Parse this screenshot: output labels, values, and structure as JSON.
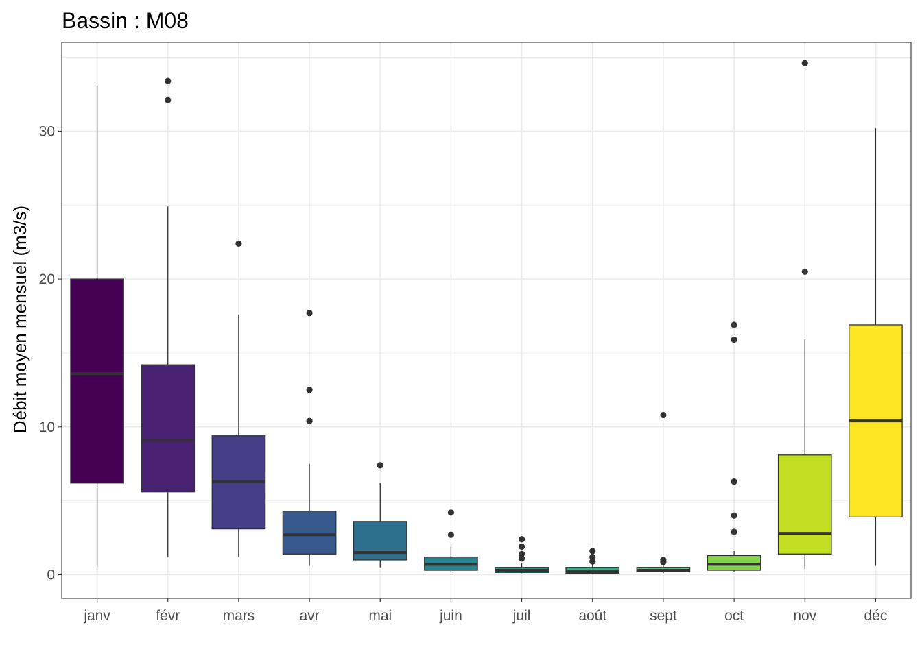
{
  "chart_data": {
    "type": "boxplot",
    "title": "Bassin : M08",
    "xlabel": "",
    "ylabel": "Débit moyen mensuel (m3/s)",
    "ylim": [
      -1.6,
      36.0
    ],
    "yticks": [
      0,
      10,
      20,
      30
    ],
    "ytick_labels": [
      "0",
      "10",
      "20",
      "30"
    ],
    "grid": true,
    "legend": "none",
    "categories": [
      "janv",
      "févr",
      "mars",
      "avr",
      "mai",
      "juin",
      "juil",
      "août",
      "sept",
      "oct",
      "nov",
      "déc"
    ],
    "colors": [
      "#440154",
      "#482173",
      "#433E85",
      "#38598C",
      "#2D708E",
      "#25858E",
      "#1E9B8A",
      "#2BB07F",
      "#51C56A",
      "#85D54A",
      "#C2DF23",
      "#FDE725"
    ],
    "boxes": [
      {
        "month": "janv",
        "whisker_low": 0.5,
        "q1": 6.2,
        "median": 13.6,
        "q3": 20.0,
        "whisker_high": 33.1,
        "outliers": []
      },
      {
        "month": "févr",
        "whisker_low": 1.2,
        "q1": 5.6,
        "median": 9.1,
        "q3": 14.2,
        "whisker_high": 24.9,
        "outliers": [
          32.1,
          33.4
        ]
      },
      {
        "month": "mars",
        "whisker_low": 1.2,
        "q1": 3.1,
        "median": 6.3,
        "q3": 9.4,
        "whisker_high": 17.6,
        "outliers": [
          22.4
        ]
      },
      {
        "month": "avr",
        "whisker_low": 0.6,
        "q1": 1.4,
        "median": 2.7,
        "q3": 4.3,
        "whisker_high": 7.5,
        "outliers": [
          10.4,
          12.5,
          17.7
        ]
      },
      {
        "month": "mai",
        "whisker_low": 0.5,
        "q1": 1.0,
        "median": 1.5,
        "q3": 3.6,
        "whisker_high": 6.2,
        "outliers": [
          7.4
        ]
      },
      {
        "month": "juin",
        "whisker_low": 0.2,
        "q1": 0.3,
        "median": 0.7,
        "q3": 1.2,
        "whisker_high": 1.9,
        "outliers": [
          2.7,
          4.2
        ]
      },
      {
        "month": "juil",
        "whisker_low": 0.1,
        "q1": 0.15,
        "median": 0.3,
        "q3": 0.5,
        "whisker_high": 0.8,
        "outliers": [
          1.1,
          1.4,
          1.9,
          2.4
        ]
      },
      {
        "month": "août",
        "whisker_low": 0.05,
        "q1": 0.1,
        "median": 0.2,
        "q3": 0.5,
        "whisker_high": 0.7,
        "outliers": [
          0.9,
          1.2,
          1.6
        ]
      },
      {
        "month": "sept",
        "whisker_low": 0.1,
        "q1": 0.2,
        "median": 0.3,
        "q3": 0.5,
        "whisker_high": 0.7,
        "outliers": [
          0.85,
          1.0,
          10.8
        ]
      },
      {
        "month": "oct",
        "whisker_low": 0.2,
        "q1": 0.3,
        "median": 0.7,
        "q3": 1.3,
        "whisker_high": 1.6,
        "outliers": [
          2.9,
          4.0,
          6.3,
          15.9,
          16.9
        ]
      },
      {
        "month": "nov",
        "whisker_low": 0.4,
        "q1": 1.4,
        "median": 2.8,
        "q3": 8.1,
        "whisker_high": 15.9,
        "outliers": [
          20.5,
          34.6
        ]
      },
      {
        "month": "déc",
        "whisker_low": 0.6,
        "q1": 3.9,
        "median": 10.4,
        "q3": 16.9,
        "whisker_high": 30.2,
        "outliers": []
      }
    ]
  }
}
